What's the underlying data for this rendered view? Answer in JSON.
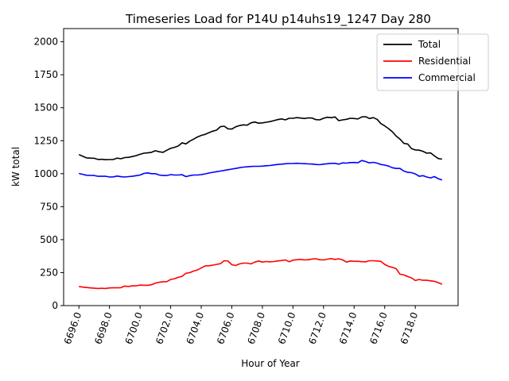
{
  "chart_data": {
    "type": "line",
    "title": "Timeseries Load for P14U p14uhs19_1247  Day 280",
    "xlabel": "Hour of Year",
    "ylabel": "kW total",
    "xlim": [
      6695.0,
      6720.8
    ],
    "ylim": [
      0,
      2100
    ],
    "x_ticks": [
      6696.0,
      6698.0,
      6700.0,
      6702.0,
      6704.0,
      6706.0,
      6708.0,
      6710.0,
      6712.0,
      6714.0,
      6716.0,
      6718.0
    ],
    "x_tick_labels": [
      "6696.0",
      "6698.0",
      "6700.0",
      "6702.0",
      "6704.0",
      "6706.0",
      "6708.0",
      "6710.0",
      "6712.0",
      "6714.0",
      "6716.0",
      "6718.0"
    ],
    "y_ticks": [
      0,
      250,
      500,
      750,
      1000,
      1250,
      1500,
      1750,
      2000
    ],
    "y_tick_labels": [
      "0",
      "250",
      "500",
      "750",
      "1000",
      "1250",
      "1500",
      "1750",
      "2000"
    ],
    "legend_position": "top-right",
    "x": [
      6696.0,
      6696.25,
      6696.5,
      6696.75,
      6697.0,
      6697.25,
      6697.5,
      6697.75,
      6698.0,
      6698.25,
      6698.5,
      6698.75,
      6699.0,
      6699.25,
      6699.5,
      6699.75,
      6700.0,
      6700.25,
      6700.5,
      6700.75,
      6701.0,
      6701.25,
      6701.5,
      6701.75,
      6702.0,
      6702.25,
      6702.5,
      6702.75,
      6703.0,
      6703.25,
      6703.5,
      6703.75,
      6704.0,
      6704.25,
      6704.5,
      6704.75,
      6705.0,
      6705.25,
      6705.5,
      6705.75,
      6706.0,
      6706.25,
      6706.5,
      6706.75,
      6707.0,
      6707.25,
      6707.5,
      6707.75,
      6708.0,
      6708.25,
      6708.5,
      6708.75,
      6709.0,
      6709.25,
      6709.5,
      6709.75,
      6710.0,
      6710.25,
      6710.5,
      6710.75,
      6711.0,
      6711.25,
      6711.5,
      6711.75,
      6712.0,
      6712.25,
      6712.5,
      6712.75,
      6713.0,
      6713.25,
      6713.5,
      6713.75,
      6714.0,
      6714.25,
      6714.5,
      6714.75,
      6715.0,
      6715.25,
      6715.5,
      6715.75,
      6716.0,
      6716.25,
      6716.5,
      6716.75,
      6717.0,
      6717.25,
      6717.5,
      6717.75,
      6718.0,
      6718.25,
      6718.5,
      6718.75,
      6719.0,
      6719.25,
      6719.5,
      6719.75
    ],
    "series": [
      {
        "name": "Total",
        "color": "#000000",
        "values": [
          1145,
          1132,
          1120,
          1118,
          1117,
          1108,
          1109,
          1106,
          1107,
          1108,
          1118,
          1113,
          1122,
          1124,
          1130,
          1137,
          1147,
          1155,
          1158,
          1162,
          1174,
          1166,
          1162,
          1178,
          1192,
          1200,
          1210,
          1234,
          1226,
          1247,
          1262,
          1278,
          1290,
          1298,
          1310,
          1322,
          1330,
          1356,
          1360,
          1340,
          1338,
          1355,
          1365,
          1370,
          1368,
          1385,
          1392,
          1383,
          1385,
          1390,
          1395,
          1402,
          1410,
          1415,
          1408,
          1420,
          1420,
          1425,
          1422,
          1418,
          1423,
          1422,
          1410,
          1408,
          1420,
          1428,
          1424,
          1430,
          1402,
          1408,
          1412,
          1420,
          1418,
          1415,
          1430,
          1432,
          1418,
          1425,
          1412,
          1380,
          1362,
          1342,
          1318,
          1285,
          1262,
          1230,
          1225,
          1190,
          1180,
          1178,
          1170,
          1155,
          1158,
          1135,
          1115,
          1110
        ]
      },
      {
        "name": "Residential",
        "color": "#ff0000",
        "values": [
          145,
          140,
          137,
          134,
          132,
          130,
          131,
          130,
          134,
          135,
          135,
          136,
          148,
          145,
          150,
          150,
          156,
          154,
          154,
          158,
          170,
          177,
          181,
          182,
          198,
          204,
          214,
          222,
          245,
          250,
          262,
          270,
          285,
          300,
          302,
          306,
          312,
          318,
          340,
          338,
          310,
          304,
          316,
          322,
          322,
          316,
          330,
          338,
          330,
          334,
          332,
          334,
          338,
          342,
          346,
          333,
          345,
          348,
          350,
          346,
          348,
          353,
          355,
          348,
          346,
          352,
          356,
          350,
          355,
          346,
          330,
          338,
          336,
          336,
          333,
          332,
          340,
          340,
          338,
          336,
          312,
          298,
          290,
          280,
          238,
          232,
          220,
          210,
          190,
          198,
          192,
          192,
          188,
          184,
          174,
          162
        ]
      },
      {
        "name": "Commercial",
        "color": "#0000ff",
        "values": [
          1002,
          995,
          988,
          987,
          986,
          980,
          980,
          980,
          975,
          976,
          982,
          977,
          975,
          978,
          980,
          985,
          990,
          1002,
          1006,
          1000,
          1000,
          990,
          986,
          986,
          993,
          990,
          990,
          992,
          978,
          985,
          990,
          990,
          993,
          998,
          1005,
          1010,
          1015,
          1020,
          1025,
          1030,
          1035,
          1040,
          1045,
          1050,
          1052,
          1055,
          1056,
          1056,
          1057,
          1060,
          1062,
          1066,
          1070,
          1072,
          1075,
          1077,
          1077,
          1079,
          1077,
          1076,
          1074,
          1073,
          1070,
          1068,
          1072,
          1075,
          1078,
          1078,
          1072,
          1082,
          1080,
          1084,
          1085,
          1083,
          1100,
          1092,
          1082,
          1086,
          1080,
          1070,
          1065,
          1058,
          1045,
          1040,
          1040,
          1020,
          1010,
          1008,
          998,
          980,
          985,
          975,
          968,
          978,
          962,
          952
        ]
      }
    ]
  }
}
